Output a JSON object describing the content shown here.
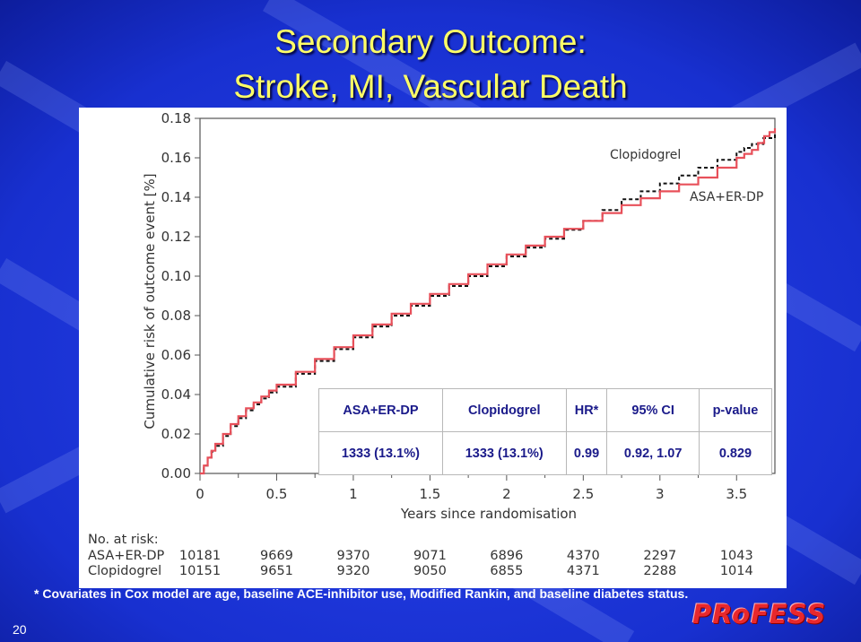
{
  "slide": {
    "title_line1": "Secondary Outcome:",
    "title_line2": "Stroke, MI, Vascular Death",
    "footnote": "* Covariates in Cox model are age, baseline ACE-inhibitor use, Modified Rankin, and baseline diabetes status.",
    "slide_number": "20",
    "logo_text": "PRoFESS"
  },
  "colors": {
    "background": "#1a2fd6",
    "title": "#ffff66",
    "asa_line": "#e8505a",
    "clopidogrel_line": "#111111",
    "table_text": "#1a1a8a",
    "logo": "#e8282d"
  },
  "chart_data": {
    "type": "line",
    "xlabel": "Years since randomisation",
    "ylabel": "Cumulative risk of outcome event [%]",
    "xlim": [
      0,
      3.75
    ],
    "ylim": [
      0,
      0.18
    ],
    "x_ticks": [
      "0",
      "0.5",
      "1",
      "1.5",
      "2",
      "2.5",
      "3",
      "3.5"
    ],
    "y_ticks": [
      "0.00",
      "0.02",
      "0.04",
      "0.06",
      "0.08",
      "0.10",
      "0.12",
      "0.14",
      "0.16",
      "0.18"
    ],
    "series": [
      {
        "name": "Clopidogrel",
        "style": "dashed",
        "color": "#111111",
        "x": [
          0,
          0.05,
          0.1,
          0.2,
          0.3,
          0.4,
          0.5,
          0.75,
          1.0,
          1.25,
          1.5,
          1.75,
          2.0,
          2.25,
          2.5,
          2.75,
          3.0,
          3.25,
          3.5,
          3.6,
          3.75
        ],
        "y": [
          0,
          0.008,
          0.014,
          0.024,
          0.032,
          0.038,
          0.044,
          0.057,
          0.069,
          0.08,
          0.09,
          0.1,
          0.11,
          0.119,
          0.128,
          0.139,
          0.147,
          0.155,
          0.163,
          0.167,
          0.173
        ]
      },
      {
        "name": "ASA+ER-DP",
        "style": "solid",
        "color": "#e8505a",
        "x": [
          0,
          0.05,
          0.1,
          0.2,
          0.3,
          0.4,
          0.5,
          0.75,
          1.0,
          1.25,
          1.5,
          1.75,
          2.0,
          2.25,
          2.5,
          2.75,
          3.0,
          3.25,
          3.5,
          3.6,
          3.68,
          3.75
        ],
        "y": [
          0,
          0.008,
          0.015,
          0.025,
          0.033,
          0.039,
          0.045,
          0.058,
          0.07,
          0.081,
          0.091,
          0.101,
          0.111,
          0.12,
          0.128,
          0.136,
          0.143,
          0.15,
          0.16,
          0.164,
          0.171,
          0.175
        ]
      }
    ],
    "annotations": [
      "Clopidogrel",
      "ASA+ER-DP"
    ],
    "number_at_risk": {
      "title": "No. at risk:",
      "rows": [
        {
          "label": "ASA+ER-DP",
          "values": [
            "10181",
            "9669",
            "9370",
            "9071",
            "6896",
            "4370",
            "2297",
            "1043"
          ]
        },
        {
          "label": "Clopidogrel",
          "values": [
            "10151",
            "9651",
            "9320",
            "9050",
            "6855",
            "4371",
            "2288",
            "1014"
          ]
        }
      ]
    }
  },
  "stats_table": {
    "headers": [
      "ASA+ER-DP",
      "Clopidogrel",
      "HR*",
      "95% CI",
      "p-value"
    ],
    "values": [
      "1333 (13.1%)",
      "1333 (13.1%)",
      "0.99",
      "0.92, 1.07",
      "0.829"
    ]
  }
}
